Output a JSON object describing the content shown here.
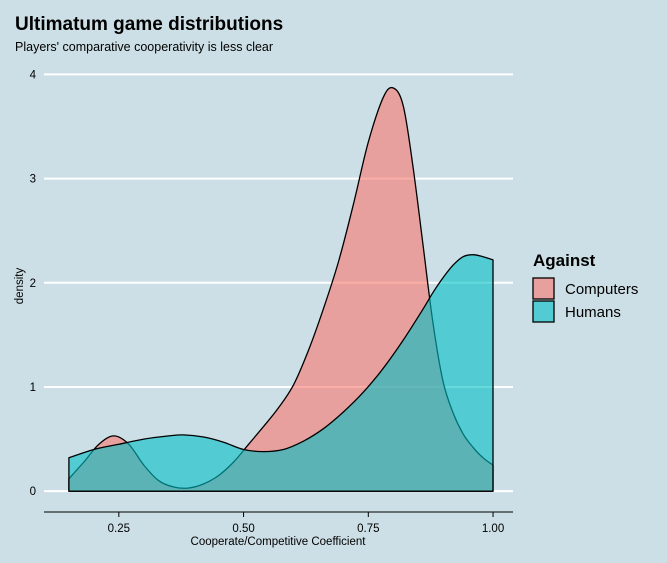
{
  "chart_data": {
    "type": "area",
    "subtype": "density",
    "title": "Ultimatum game distributions",
    "subtitle": "Players' comparative cooperativity is less clear",
    "xlabel": "Cooperate/Competitive Coefficient",
    "ylabel": "density",
    "xlim": [
      0.1,
      1.04
    ],
    "ylim": [
      -0.2,
      4.1
    ],
    "xticks": [
      "0.25",
      "0.50",
      "0.75",
      "1.00"
    ],
    "xtick_values": [
      0.25,
      0.5,
      0.75,
      1.0
    ],
    "yticks": [
      "0",
      "1",
      "2",
      "3",
      "4"
    ],
    "ytick_values": [
      0,
      1,
      2,
      3,
      4
    ],
    "grid": "horizontal",
    "legend": {
      "title": "Against",
      "position": "right",
      "entries": [
        "Computers",
        "Humans"
      ]
    },
    "series": [
      {
        "name": "Computers",
        "color": "#f8766d",
        "x": [
          0.15,
          0.18,
          0.21,
          0.24,
          0.27,
          0.3,
          0.33,
          0.36,
          0.39,
          0.42,
          0.45,
          0.48,
          0.51,
          0.54,
          0.57,
          0.6,
          0.63,
          0.66,
          0.69,
          0.72,
          0.75,
          0.78,
          0.8,
          0.82,
          0.84,
          0.86,
          0.88,
          0.9,
          0.92,
          0.94,
          0.96,
          0.98,
          1.0
        ],
        "values": [
          0.12,
          0.28,
          0.45,
          0.53,
          0.45,
          0.25,
          0.1,
          0.04,
          0.03,
          0.07,
          0.15,
          0.28,
          0.45,
          0.62,
          0.8,
          1.02,
          1.35,
          1.75,
          2.2,
          2.75,
          3.35,
          3.78,
          3.87,
          3.7,
          3.1,
          2.35,
          1.6,
          1.05,
          0.75,
          0.55,
          0.42,
          0.32,
          0.25
        ]
      },
      {
        "name": "Humans",
        "color": "#00bfc4",
        "x": [
          0.15,
          0.2,
          0.25,
          0.3,
          0.35,
          0.38,
          0.42,
          0.46,
          0.5,
          0.54,
          0.58,
          0.62,
          0.66,
          0.7,
          0.74,
          0.78,
          0.82,
          0.86,
          0.88,
          0.9,
          0.92,
          0.94,
          0.96,
          0.98,
          1.0
        ],
        "values": [
          0.32,
          0.4,
          0.45,
          0.5,
          0.53,
          0.54,
          0.52,
          0.47,
          0.4,
          0.38,
          0.4,
          0.48,
          0.6,
          0.76,
          0.95,
          1.18,
          1.45,
          1.75,
          1.91,
          2.05,
          2.17,
          2.25,
          2.27,
          2.25,
          2.22
        ]
      }
    ]
  }
}
